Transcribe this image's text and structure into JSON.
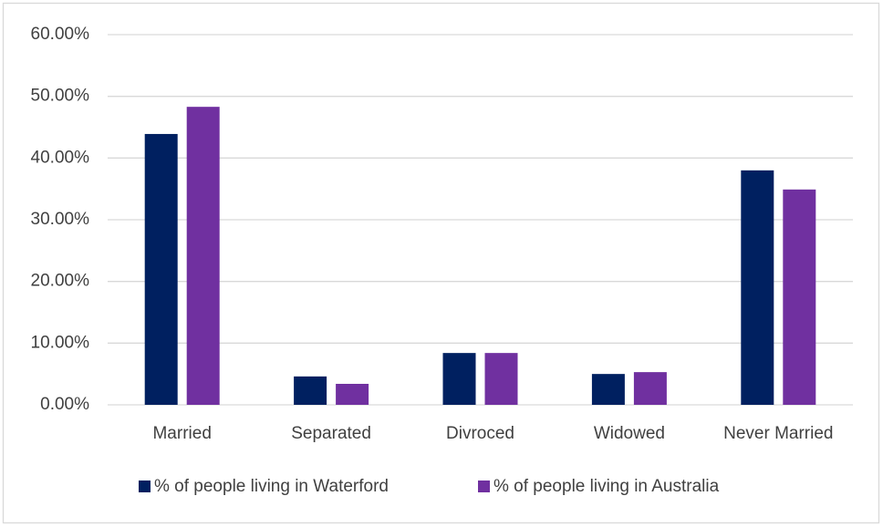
{
  "chart_data": {
    "type": "bar",
    "categories": [
      "Married",
      "Separated",
      "Divroced",
      "Widowed",
      "Never Married"
    ],
    "series": [
      {
        "name": "% of people living in Waterford",
        "color": "#002060",
        "values": [
          43.9,
          4.6,
          8.4,
          5.0,
          38.0
        ]
      },
      {
        "name": "% of people living in Australia",
        "color": "#7030a0",
        "values": [
          48.3,
          3.4,
          8.4,
          5.3,
          34.9
        ]
      }
    ],
    "ylim": [
      0,
      60
    ],
    "yticks": [
      {
        "value": 0,
        "label": "0.00%"
      },
      {
        "value": 10,
        "label": "10.00%"
      },
      {
        "value": 20,
        "label": "20.00%"
      },
      {
        "value": 30,
        "label": "30.00%"
      },
      {
        "value": 40,
        "label": "40.00%"
      },
      {
        "value": 50,
        "label": "50.00%"
      },
      {
        "value": 60,
        "label": "60.00%"
      }
    ],
    "grid": true,
    "legend": "bottom"
  }
}
